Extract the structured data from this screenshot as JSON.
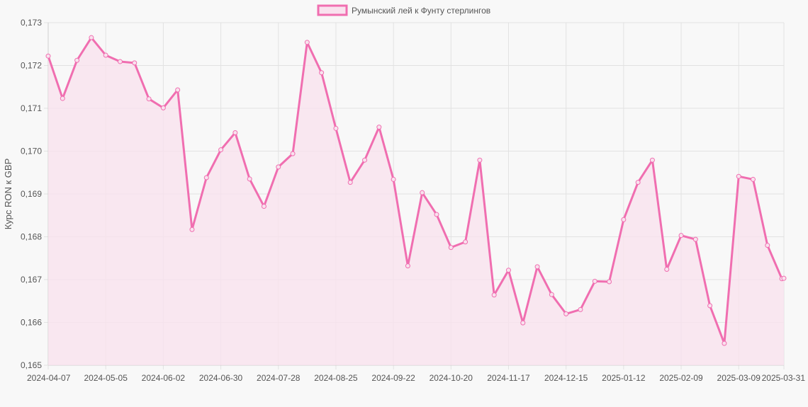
{
  "colors": {
    "line": "#f06eb0",
    "fill": "#f9e2ee",
    "grid": "#e2e2e2",
    "text": "#555555",
    "background": "#f8f8f8"
  },
  "chart_data": {
    "type": "area",
    "legend_position": "top",
    "grid": true,
    "ylabel": "Курс RON к GBP",
    "ylim": [
      0.165,
      0.173
    ],
    "y_ticks": [
      "0,165",
      "0,166",
      "0,167",
      "0,168",
      "0,169",
      "0,170",
      "0,171",
      "0,172",
      "0,173"
    ],
    "x_tick_labels": [
      "2024-04-07",
      "2024-05-05",
      "2024-06-02",
      "2024-06-30",
      "2024-07-28",
      "2024-08-25",
      "2024-09-22",
      "2024-10-20",
      "2024-11-17",
      "2024-12-15",
      "2025-01-12",
      "2025-02-09",
      "2025-03-09",
      "2025-03-31"
    ],
    "series": [
      {
        "name": "Румынский лей к Фунту стерлингов",
        "x": [
          "2024-04-07",
          "2024-04-14",
          "2024-04-21",
          "2024-04-28",
          "2024-05-05",
          "2024-05-12",
          "2024-05-19",
          "2024-05-26",
          "2024-06-02",
          "2024-06-09",
          "2024-06-16",
          "2024-06-23",
          "2024-06-30",
          "2024-07-07",
          "2024-07-14",
          "2024-07-21",
          "2024-07-28",
          "2024-08-04",
          "2024-08-11",
          "2024-08-18",
          "2024-08-25",
          "2024-09-01",
          "2024-09-08",
          "2024-09-15",
          "2024-09-22",
          "2024-09-29",
          "2024-10-06",
          "2024-10-13",
          "2024-10-20",
          "2024-10-27",
          "2024-11-03",
          "2024-11-10",
          "2024-11-17",
          "2024-11-24",
          "2024-12-01",
          "2024-12-08",
          "2024-12-15",
          "2024-12-22",
          "2024-12-29",
          "2025-01-05",
          "2025-01-12",
          "2025-01-19",
          "2025-01-26",
          "2025-02-02",
          "2025-02-09",
          "2025-02-16",
          "2025-02-23",
          "2025-03-02",
          "2025-03-09",
          "2025-03-16",
          "2025-03-23",
          "2025-03-30",
          "2025-03-31"
        ],
        "values": [
          0.17222,
          0.17123,
          0.17212,
          0.17265,
          0.17224,
          0.17209,
          0.17206,
          0.17122,
          0.17101,
          0.17143,
          0.16817,
          0.16938,
          0.17003,
          0.17043,
          0.16935,
          0.16871,
          0.16963,
          0.16994,
          0.17254,
          0.17183,
          0.17053,
          0.16927,
          0.16979,
          0.17056,
          0.16934,
          0.16732,
          0.16903,
          0.16852,
          0.16775,
          0.16788,
          0.16979,
          0.16664,
          0.16722,
          0.16599,
          0.1673,
          0.16665,
          0.1662,
          0.1663,
          0.16696,
          0.16695,
          0.1684,
          0.16927,
          0.16979,
          0.16724,
          0.16803,
          0.16794,
          0.16639,
          0.16551,
          0.16941,
          0.16934,
          0.1678,
          0.16702,
          0.16703
        ]
      }
    ]
  }
}
